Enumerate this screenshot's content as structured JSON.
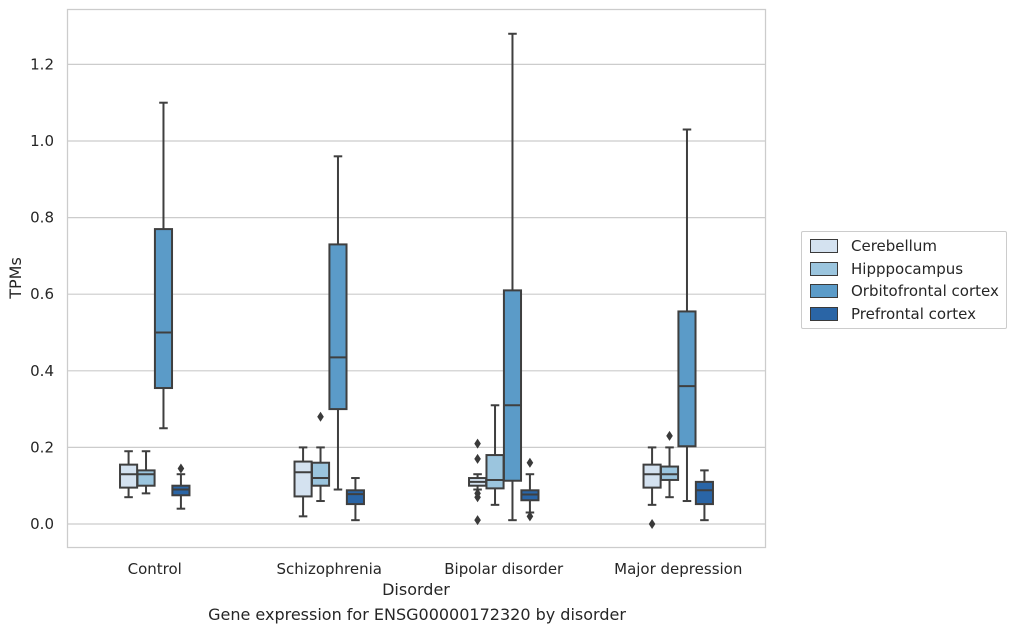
{
  "chart_data": {
    "type": "box",
    "xlabel": "Disorder",
    "ylabel": "TPMs",
    "caption": "Gene expression for ENSG00000172320 by disorder",
    "ylim": [
      -0.06,
      1.34
    ],
    "yticks": [
      0.0,
      0.2,
      0.4,
      0.6,
      0.8,
      1.0,
      1.2
    ],
    "ytick_labels": [
      "0.0",
      "0.2",
      "0.4",
      "0.6",
      "0.8",
      "1.0",
      "1.2"
    ],
    "grid": "horizontal",
    "legend_position": "right",
    "categories": [
      "Control",
      "Schizophrenia",
      "Bipolar disorder",
      "Major depression"
    ],
    "series": [
      {
        "name": "Cerebellum",
        "color": "#d4e2f0",
        "boxes": [
          {
            "whisker_low": 0.07,
            "q1": 0.095,
            "median": 0.13,
            "q3": 0.155,
            "whisker_high": 0.19,
            "outliers": []
          },
          {
            "whisker_low": 0.02,
            "q1": 0.072,
            "median": 0.135,
            "q3": 0.163,
            "whisker_high": 0.2,
            "outliers": []
          },
          {
            "whisker_low": 0.09,
            "q1": 0.1,
            "median": 0.11,
            "q3": 0.12,
            "whisker_high": 0.13,
            "outliers": [
              0.21,
              0.17,
              0.08,
              0.07,
              0.01
            ]
          },
          {
            "whisker_low": 0.05,
            "q1": 0.095,
            "median": 0.13,
            "q3": 0.155,
            "whisker_high": 0.2,
            "outliers": [
              0.0
            ]
          }
        ]
      },
      {
        "name": "Hipppocampus",
        "color": "#9bc5de",
        "boxes": [
          {
            "whisker_low": 0.08,
            "q1": 0.1,
            "median": 0.13,
            "q3": 0.14,
            "whisker_high": 0.19,
            "outliers": []
          },
          {
            "whisker_low": 0.06,
            "q1": 0.1,
            "median": 0.12,
            "q3": 0.16,
            "whisker_high": 0.2,
            "outliers": [
              0.28
            ]
          },
          {
            "whisker_low": 0.05,
            "q1": 0.093,
            "median": 0.115,
            "q3": 0.18,
            "whisker_high": 0.31,
            "outliers": []
          },
          {
            "whisker_low": 0.07,
            "q1": 0.115,
            "median": 0.13,
            "q3": 0.15,
            "whisker_high": 0.2,
            "outliers": [
              0.23
            ]
          }
        ]
      },
      {
        "name": "Orbitofrontal cortex",
        "color": "#5b9bc8",
        "boxes": [
          {
            "whisker_low": 0.25,
            "q1": 0.355,
            "median": 0.5,
            "q3": 0.77,
            "whisker_high": 1.1,
            "outliers": []
          },
          {
            "whisker_low": 0.09,
            "q1": 0.3,
            "median": 0.435,
            "q3": 0.73,
            "whisker_high": 0.96,
            "outliers": []
          },
          {
            "whisker_low": 0.01,
            "q1": 0.113,
            "median": 0.31,
            "q3": 0.61,
            "whisker_high": 1.28,
            "outliers": []
          },
          {
            "whisker_low": 0.06,
            "q1": 0.203,
            "median": 0.36,
            "q3": 0.555,
            "whisker_high": 1.03,
            "outliers": []
          }
        ]
      },
      {
        "name": "Prefrontal cortex",
        "color": "#2a65a6",
        "boxes": [
          {
            "whisker_low": 0.04,
            "q1": 0.075,
            "median": 0.09,
            "q3": 0.1,
            "whisker_high": 0.13,
            "outliers": [
              0.145
            ]
          },
          {
            "whisker_low": 0.01,
            "q1": 0.052,
            "median": 0.078,
            "q3": 0.088,
            "whisker_high": 0.12,
            "outliers": []
          },
          {
            "whisker_low": 0.03,
            "q1": 0.062,
            "median": 0.077,
            "q3": 0.088,
            "whisker_high": 0.13,
            "outliers": [
              0.16,
              0.02
            ]
          },
          {
            "whisker_low": 0.01,
            "q1": 0.052,
            "median": 0.088,
            "q3": 0.11,
            "whisker_high": 0.14,
            "outliers": []
          }
        ]
      }
    ]
  }
}
